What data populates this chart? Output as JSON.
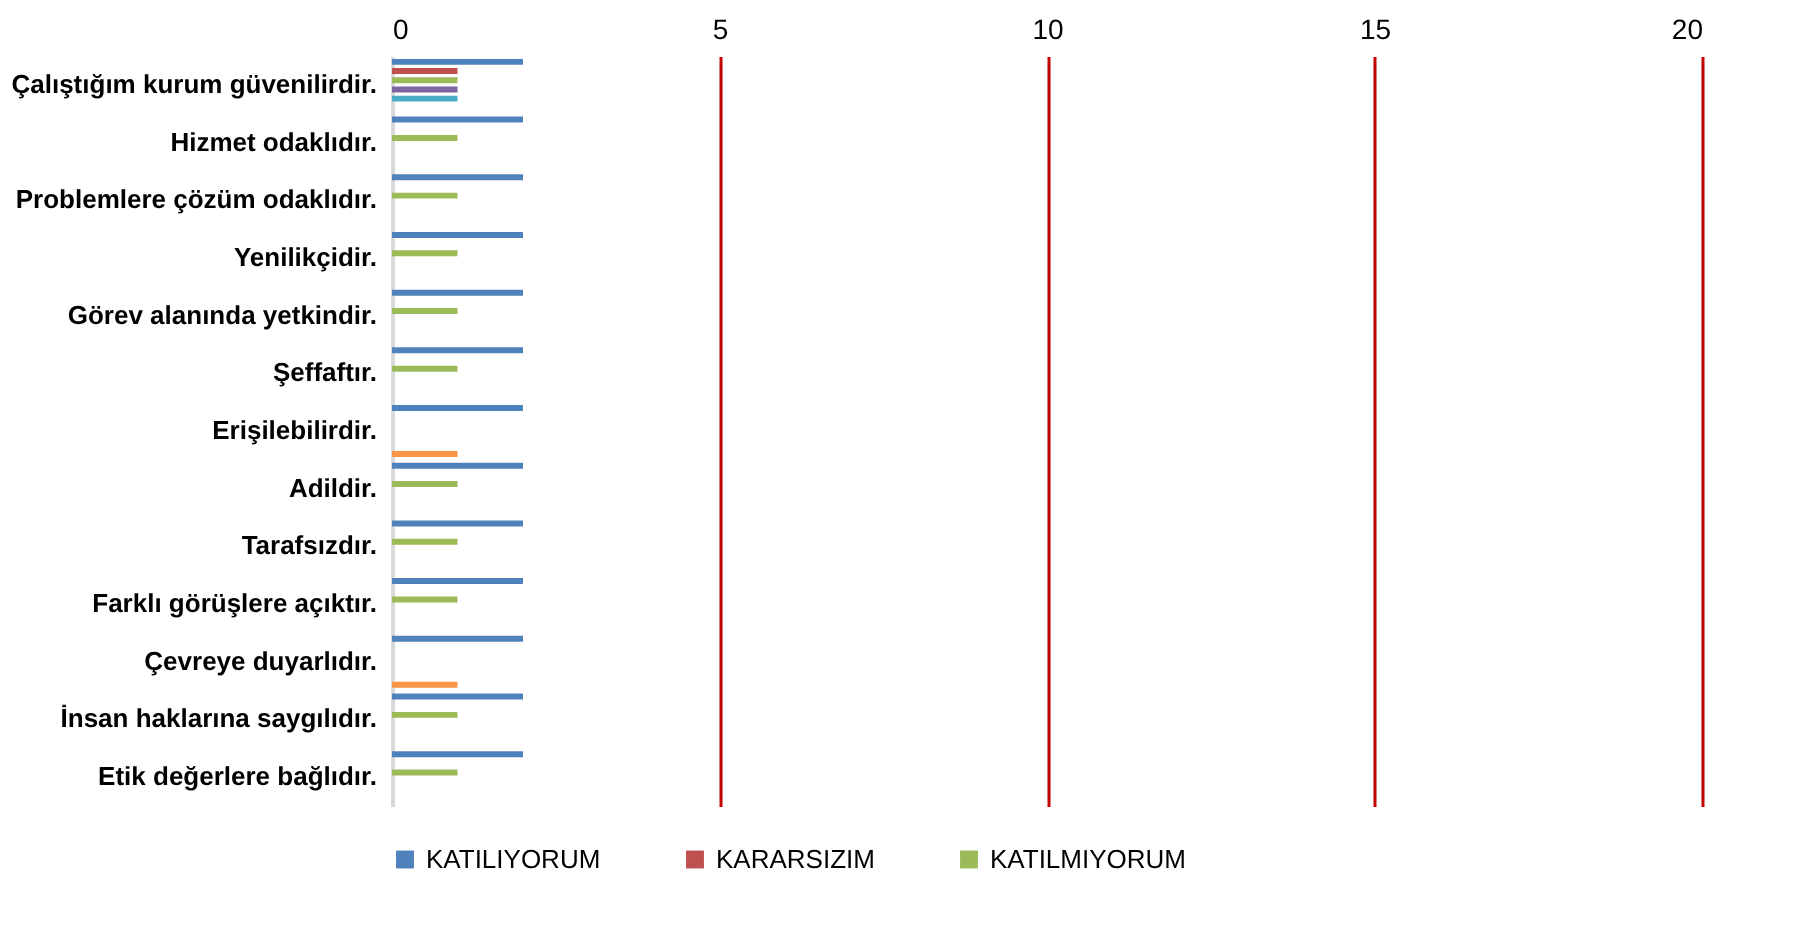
{
  "chart_data": {
    "type": "bar",
    "orientation": "horizontal",
    "categories": [
      "Çalıştığım kurum güvenilirdir.",
      "Hizmet odaklıdır.",
      "Problemlere çözüm odaklıdır.",
      "Yenilikçidir.",
      "Görev alanında yetkindir.",
      "Şeffaftır.",
      "Erişilebilirdir.",
      "Adildir.",
      "Tarafsızdır.",
      "Farklı görüşlere açıktır.",
      "Çevreye duyarlıdır.",
      "İnsan haklarına saygılıdır.",
      "Etik değerlere bağlıdır."
    ],
    "series": [
      {
        "name": "KATILIYORUM",
        "color": "#4f81bd",
        "values": [
          2,
          2,
          2,
          2,
          2,
          2,
          2,
          2,
          2,
          2,
          2,
          2,
          2
        ]
      },
      {
        "name": "KARARSIZIM",
        "color": "#c0504d",
        "values": [
          1,
          null,
          null,
          null,
          null,
          null,
          null,
          null,
          null,
          null,
          null,
          null,
          null
        ]
      },
      {
        "name": "KATILMIYORUM",
        "color": "#9bbb59",
        "values": [
          1,
          1,
          1,
          1,
          1,
          1,
          null,
          1,
          1,
          1,
          null,
          1,
          1
        ]
      },
      {
        "color": "#8064a2",
        "values": [
          1,
          null,
          null,
          null,
          null,
          null,
          null,
          null,
          null,
          null,
          null,
          null,
          null
        ]
      },
      {
        "color": "#4bacc6",
        "values": [
          1,
          null,
          null,
          null,
          null,
          null,
          null,
          null,
          null,
          null,
          null,
          null,
          null
        ]
      },
      {
        "color": "#f79646",
        "values": [
          null,
          null,
          null,
          null,
          null,
          null,
          1,
          null,
          null,
          null,
          1,
          null,
          null
        ]
      }
    ],
    "xlim": [
      0,
      20
    ],
    "xticks": [
      0,
      5,
      10,
      15,
      20
    ],
    "grid": "x",
    "legend": "bottom"
  }
}
